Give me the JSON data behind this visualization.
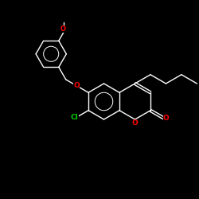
{
  "background_color": "#000000",
  "bond_color": "#ffffff",
  "oxygen_color": "#ff0000",
  "chlorine_color": "#00cc00",
  "figsize": [
    2.5,
    2.5
  ],
  "dpi": 100,
  "bond_lw": 1.0,
  "font_size": 6.5,
  "xlim": [
    0,
    10
  ],
  "ylim": [
    0,
    10
  ]
}
